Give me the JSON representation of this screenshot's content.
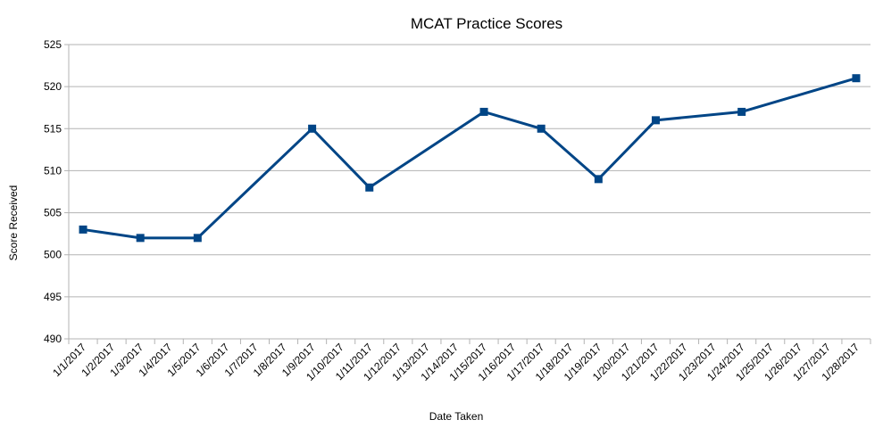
{
  "chart_data": {
    "type": "line",
    "title": "MCAT Practice Scores",
    "xlabel": "Date Taken",
    "ylabel": "Score Received",
    "ylim": [
      490,
      525
    ],
    "yticks": [
      "490",
      "495",
      "500",
      "505",
      "510",
      "515",
      "520",
      "525"
    ],
    "categories": [
      "1/1/2017",
      "1/2/2017",
      "1/3/2017",
      "1/4/2017",
      "1/5/2017",
      "1/6/2017",
      "1/7/2017",
      "1/8/2017",
      "1/9/2017",
      "1/10/2017",
      "1/11/2017",
      "1/12/2017",
      "1/13/2017",
      "1/14/2017",
      "1/15/2017",
      "1/16/2017",
      "1/17/2017",
      "1/18/2017",
      "1/19/2017",
      "1/20/2017",
      "1/21/2017",
      "1/22/2017",
      "1/23/2017",
      "1/24/2017",
      "1/25/2017",
      "1/26/2017",
      "1/27/2017",
      "1/28/2017"
    ],
    "points": [
      {
        "x": "1/1/2017",
        "y": 503
      },
      {
        "x": "1/3/2017",
        "y": 502
      },
      {
        "x": "1/5/2017",
        "y": 502
      },
      {
        "x": "1/9/2017",
        "y": 515
      },
      {
        "x": "1/11/2017",
        "y": 508
      },
      {
        "x": "1/15/2017",
        "y": 517
      },
      {
        "x": "1/17/2017",
        "y": 515
      },
      {
        "x": "1/19/2017",
        "y": 509
      },
      {
        "x": "1/21/2017",
        "y": 516
      },
      {
        "x": "1/24/2017",
        "y": 517
      },
      {
        "x": "1/28/2017",
        "y": 521
      }
    ],
    "grid": true,
    "legend": "none",
    "colors": {
      "line": "#004586",
      "grid": "#b3b3b3",
      "axis": "#b3b3b3"
    }
  }
}
